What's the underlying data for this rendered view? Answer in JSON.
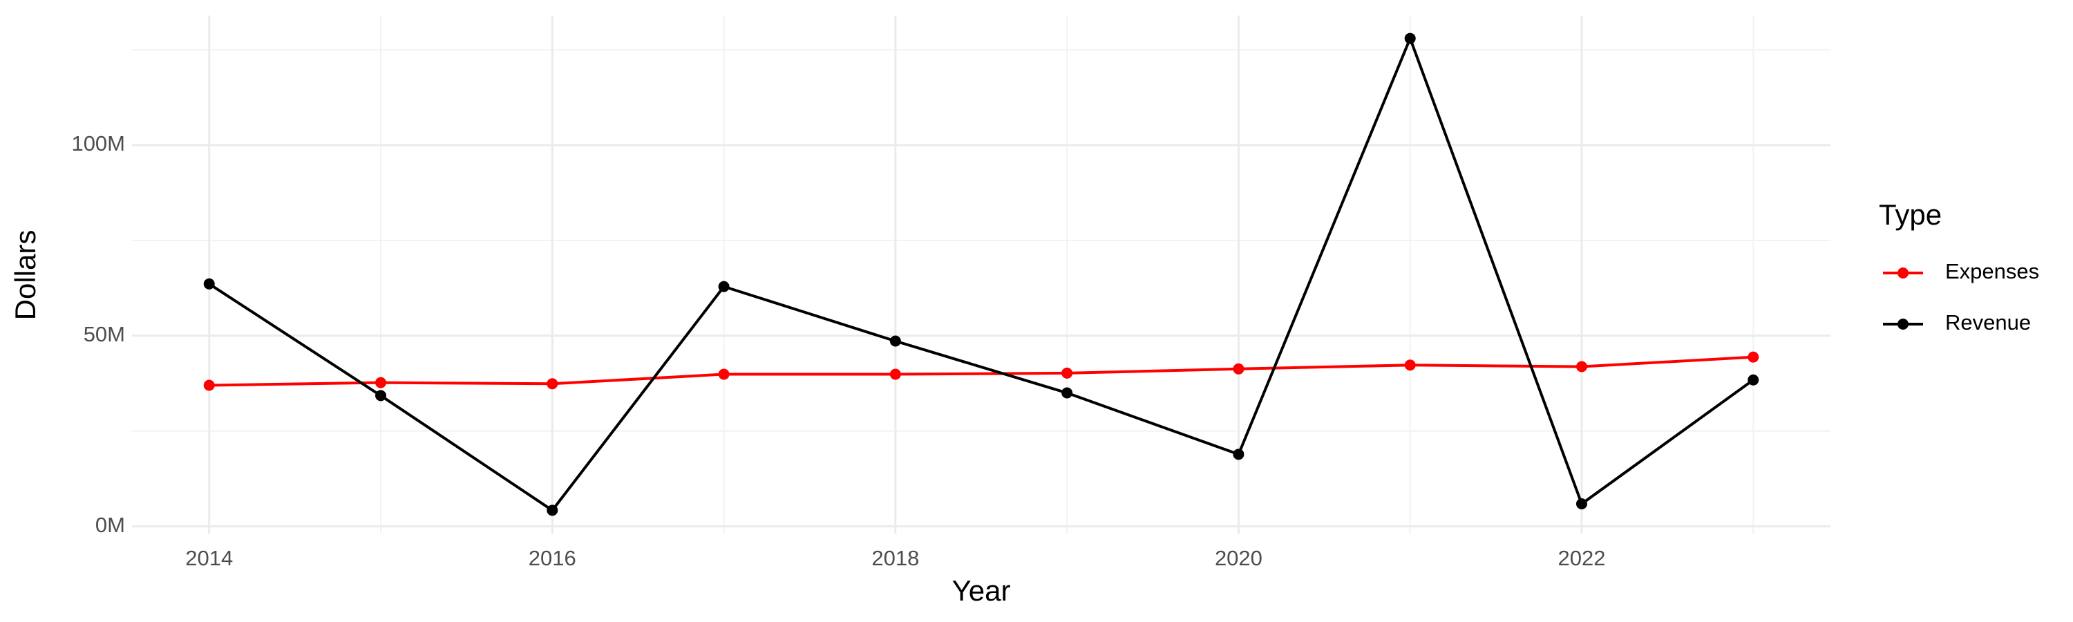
{
  "chart_data": {
    "type": "line",
    "x_label": "Year",
    "y_label": "Dollars",
    "legend_title": "Type",
    "legend": "right",
    "x": [
      2014,
      2015,
      2016,
      2017,
      2018,
      2019,
      2020,
      2021,
      2022,
      2023
    ],
    "series": [
      {
        "name": "Expenses",
        "color": "#ff0000",
        "values": [
          37000000,
          37700000,
          37400000,
          39900000,
          39900000,
          40200000,
          41300000,
          42300000,
          41900000,
          44400000
        ]
      },
      {
        "name": "Revenue",
        "color": "#000000",
        "values": [
          63600000,
          34300000,
          4200000,
          62900000,
          48600000,
          35000000,
          18900000,
          128000000,
          5900000,
          38400000
        ]
      }
    ],
    "xlim": [
      2013.55,
      2023.45
    ],
    "xticks": [
      2014,
      2016,
      2018,
      2020,
      2022
    ],
    "ylim": [
      -2000000,
      134000000
    ],
    "yticks": [
      {
        "value": 0,
        "label": "0M"
      },
      {
        "value": 50000000,
        "label": "50M"
      },
      {
        "value": 100000000,
        "label": "100M"
      }
    ],
    "grid": true
  }
}
